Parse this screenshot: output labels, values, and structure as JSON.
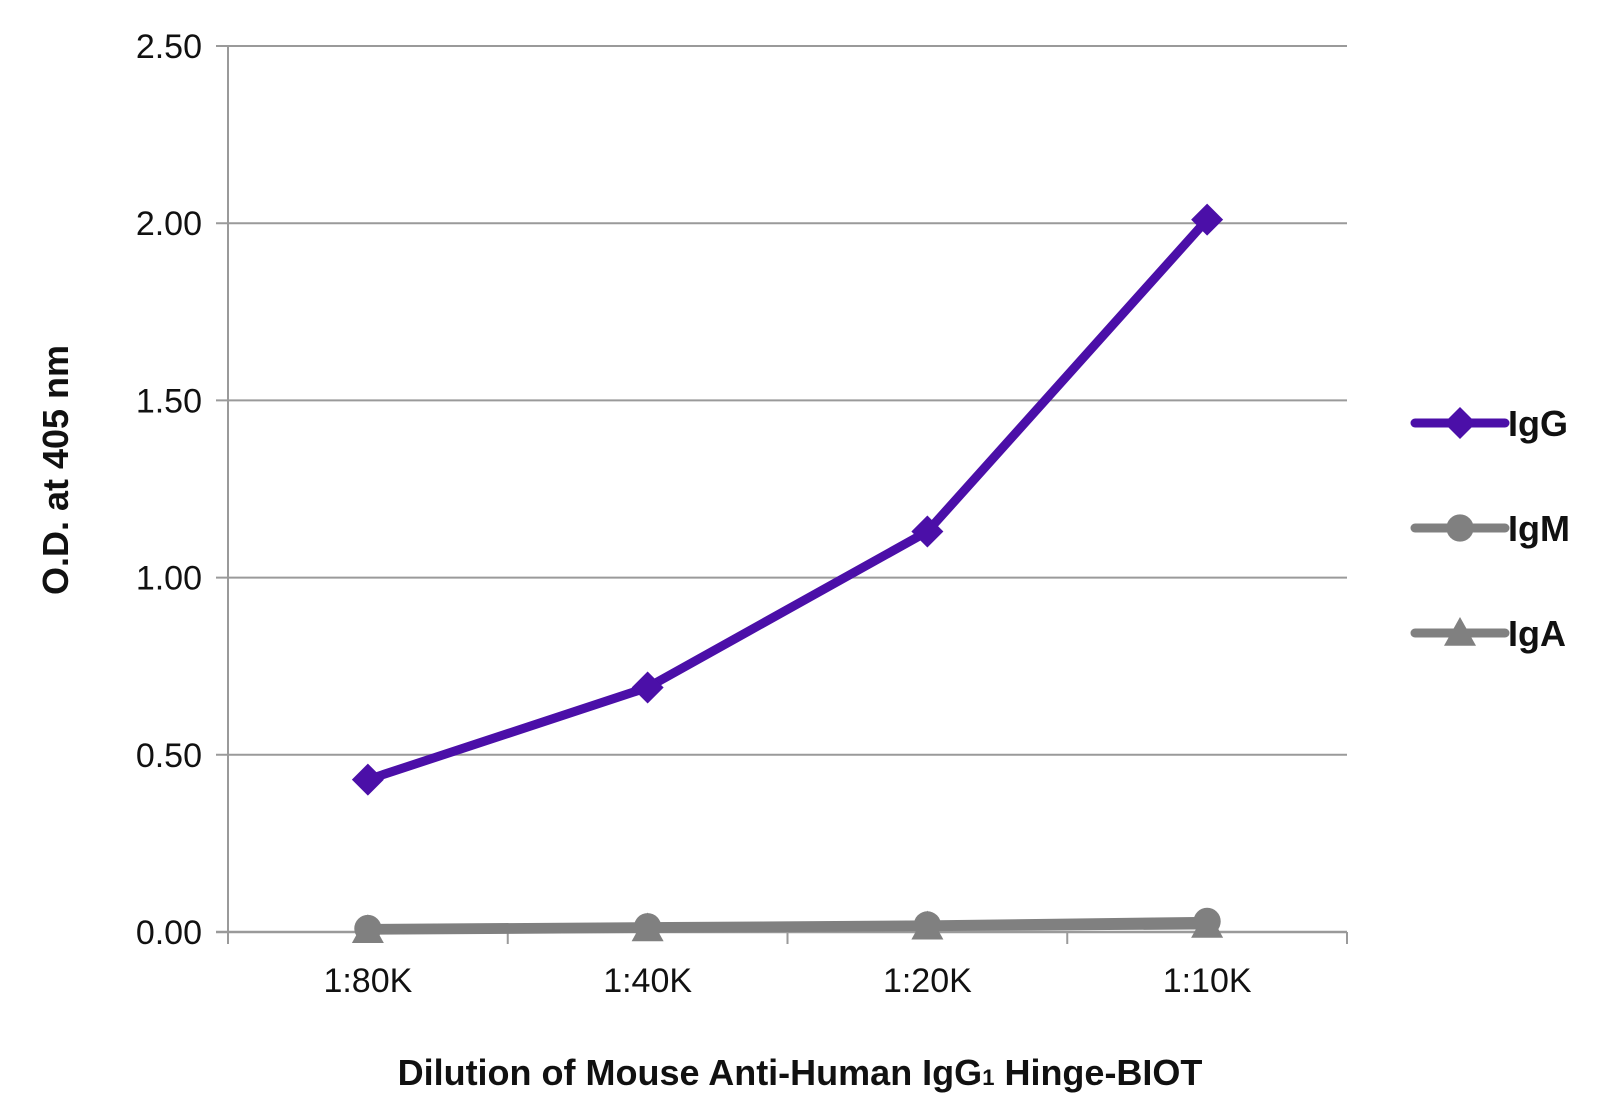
{
  "chart_data": {
    "type": "line",
    "categories": [
      "1:80K",
      "1:40K",
      "1:20K",
      "1:10K"
    ],
    "series": [
      {
        "name": "IgG",
        "values": [
          0.43,
          0.69,
          1.13,
          2.01
        ],
        "color": "#4B0FA8",
        "marker": "diamond"
      },
      {
        "name": "IgM",
        "values": [
          0.01,
          0.015,
          0.02,
          0.03
        ],
        "color": "#808080",
        "marker": "circle"
      },
      {
        "name": "IgA",
        "values": [
          0.005,
          0.01,
          0.015,
          0.02
        ],
        "color": "#808080",
        "marker": "triangle"
      }
    ],
    "ylim": [
      0,
      2.5
    ],
    "yticks": [
      "0.00",
      "0.50",
      "1.00",
      "1.50",
      "2.00",
      "2.50"
    ],
    "ylabel": "O.D. at 405 nm",
    "xlabel_main": "Dilution of Mouse Anti-Human IgG",
    "xlabel_sub": "1",
    "xlabel_tail": " Hinge-BIOT",
    "grid": true,
    "legend_position": "right"
  }
}
